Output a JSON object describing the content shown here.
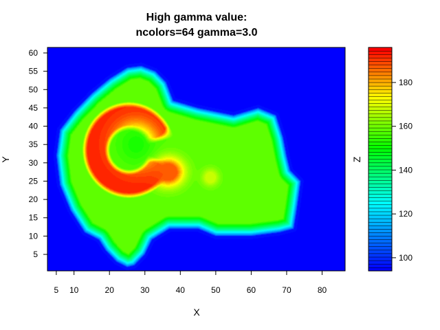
{
  "chart_data": {
    "type": "heatmap",
    "title_lines": [
      "High gamma value:",
      "ncolors=64  gamma=3.0"
    ],
    "xlabel": "X",
    "ylabel": "Y",
    "zlabel": "Z",
    "xlim": [
      2.5,
      86.5
    ],
    "ylim": [
      0.5,
      61.5
    ],
    "x_ticks": [
      5,
      10,
      20,
      30,
      40,
      50,
      60,
      70,
      80
    ],
    "y_ticks": [
      5,
      10,
      15,
      20,
      25,
      30,
      35,
      40,
      45,
      50,
      55,
      60
    ],
    "zlim": [
      94,
      196
    ],
    "z_ticks": [
      100,
      120,
      140,
      160,
      180
    ],
    "ncolors": 64,
    "gamma": 3.0,
    "background_z": 94,
    "colors": {
      "low": "#0000ff",
      "cyan": "#00ffff",
      "mid": "#00ff00",
      "yellow": "#ffff00",
      "high": "#ff0000"
    },
    "terrain": {
      "outline": [
        [
          25,
          1.5
        ],
        [
          22,
          3
        ],
        [
          19,
          6
        ],
        [
          17,
          9
        ],
        [
          13,
          11
        ],
        [
          9,
          17
        ],
        [
          6,
          24
        ],
        [
          5,
          32
        ],
        [
          6,
          39
        ],
        [
          10,
          44
        ],
        [
          15,
          49
        ],
        [
          20,
          53
        ],
        [
          25,
          56
        ],
        [
          29,
          56.5
        ],
        [
          33,
          55
        ],
        [
          36,
          52
        ],
        [
          38,
          47
        ],
        [
          45,
          45
        ],
        [
          55,
          43
        ],
        [
          62,
          45
        ],
        [
          67,
          43
        ],
        [
          69,
          37
        ],
        [
          70,
          32
        ],
        [
          71,
          28
        ],
        [
          74,
          25
        ],
        [
          73,
          18
        ],
        [
          72,
          12
        ],
        [
          68,
          11
        ],
        [
          60,
          10
        ],
        [
          50,
          10
        ],
        [
          45,
          12
        ],
        [
          37,
          12
        ],
        [
          32,
          9
        ],
        [
          30,
          5
        ],
        [
          27,
          2
        ]
      ],
      "base_z": 158,
      "edge_z": 100,
      "features": [
        {
          "type": "ring",
          "cx": 25.5,
          "cy": 33.5,
          "r_inner": 6.5,
          "r_outer": 12,
          "z": 192,
          "spread_x": 1.0,
          "spread_y": 1.0,
          "open_angle_deg": 0,
          "open_width_deg": 60
        },
        {
          "type": "blob",
          "cx": 36.5,
          "cy": 27.5,
          "rx": 4,
          "ry": 3.5,
          "z": 188
        },
        {
          "type": "blob",
          "cx": 48.5,
          "cy": 26,
          "rx": 2.2,
          "ry": 2.2,
          "z": 168
        },
        {
          "type": "blob",
          "cx": 27.5,
          "cy": 35,
          "rx": 5,
          "ry": 5,
          "z": 152
        }
      ]
    },
    "series": []
  }
}
